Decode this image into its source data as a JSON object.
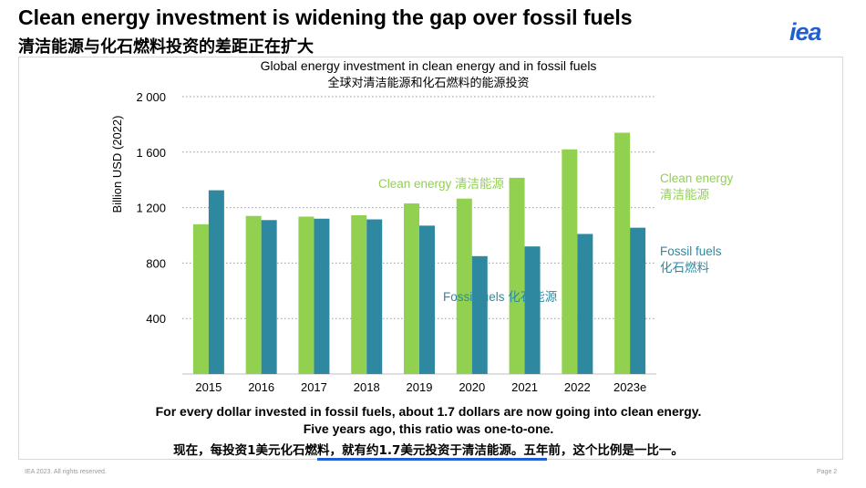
{
  "header": {
    "title": "Clean energy investment is widening the gap over fossil fuels",
    "subtitle": "清洁能源与化石燃料投资的差距正在扩大",
    "logo": "iea"
  },
  "chart_data": {
    "type": "bar",
    "title": "Global energy investment in clean energy and in fossil fuels",
    "title_zh": "全球对清洁能源和化石燃料的能源投资",
    "ylabel": "Billion USD (2022)",
    "xlabel": "",
    "categories": [
      "2015",
      "2016",
      "2017",
      "2018",
      "2019",
      "2020",
      "2021",
      "2022",
      "2023e"
    ],
    "series": [
      {
        "name": "Clean energy 清洁能源",
        "name_en": "Clean energy",
        "name_zh": "清洁能源",
        "color": "#92d050",
        "values": [
          1080,
          1140,
          1135,
          1145,
          1230,
          1265,
          1415,
          1620,
          1740
        ]
      },
      {
        "name": "Fossil fuels 化石燃料",
        "name_en": "Fossil fuels",
        "name_zh": "化石燃料",
        "color": "#2e89a0",
        "values": [
          1325,
          1110,
          1120,
          1115,
          1070,
          850,
          920,
          1010,
          1055
        ]
      }
    ],
    "yticks": [
      "400",
      "800",
      "1 200",
      "1 600",
      "2 000"
    ],
    "ytick_values": [
      400,
      800,
      1200,
      1600,
      2000
    ],
    "ylim": [
      0,
      2000
    ],
    "grid": true,
    "annotations": [
      {
        "text": "Clean energy 清洁能源",
        "series": 0
      },
      {
        "text": "Fossil fuels 化石能源",
        "series": 1
      }
    ],
    "legend_placement": "right"
  },
  "caption": {
    "line1": "For every dollar invested in fossil fuels, about 1.7 dollars are now going into clean energy.",
    "line2": "Five years ago, this ratio was one-to-one.",
    "line3": "现在，每投资1美元化石燃料，就有约1.7美元投资于清洁能源。五年前，这个比例是一比一。"
  },
  "footer": {
    "copyright": "IEA 2023. All rights reserved.",
    "page": "Page 2"
  }
}
